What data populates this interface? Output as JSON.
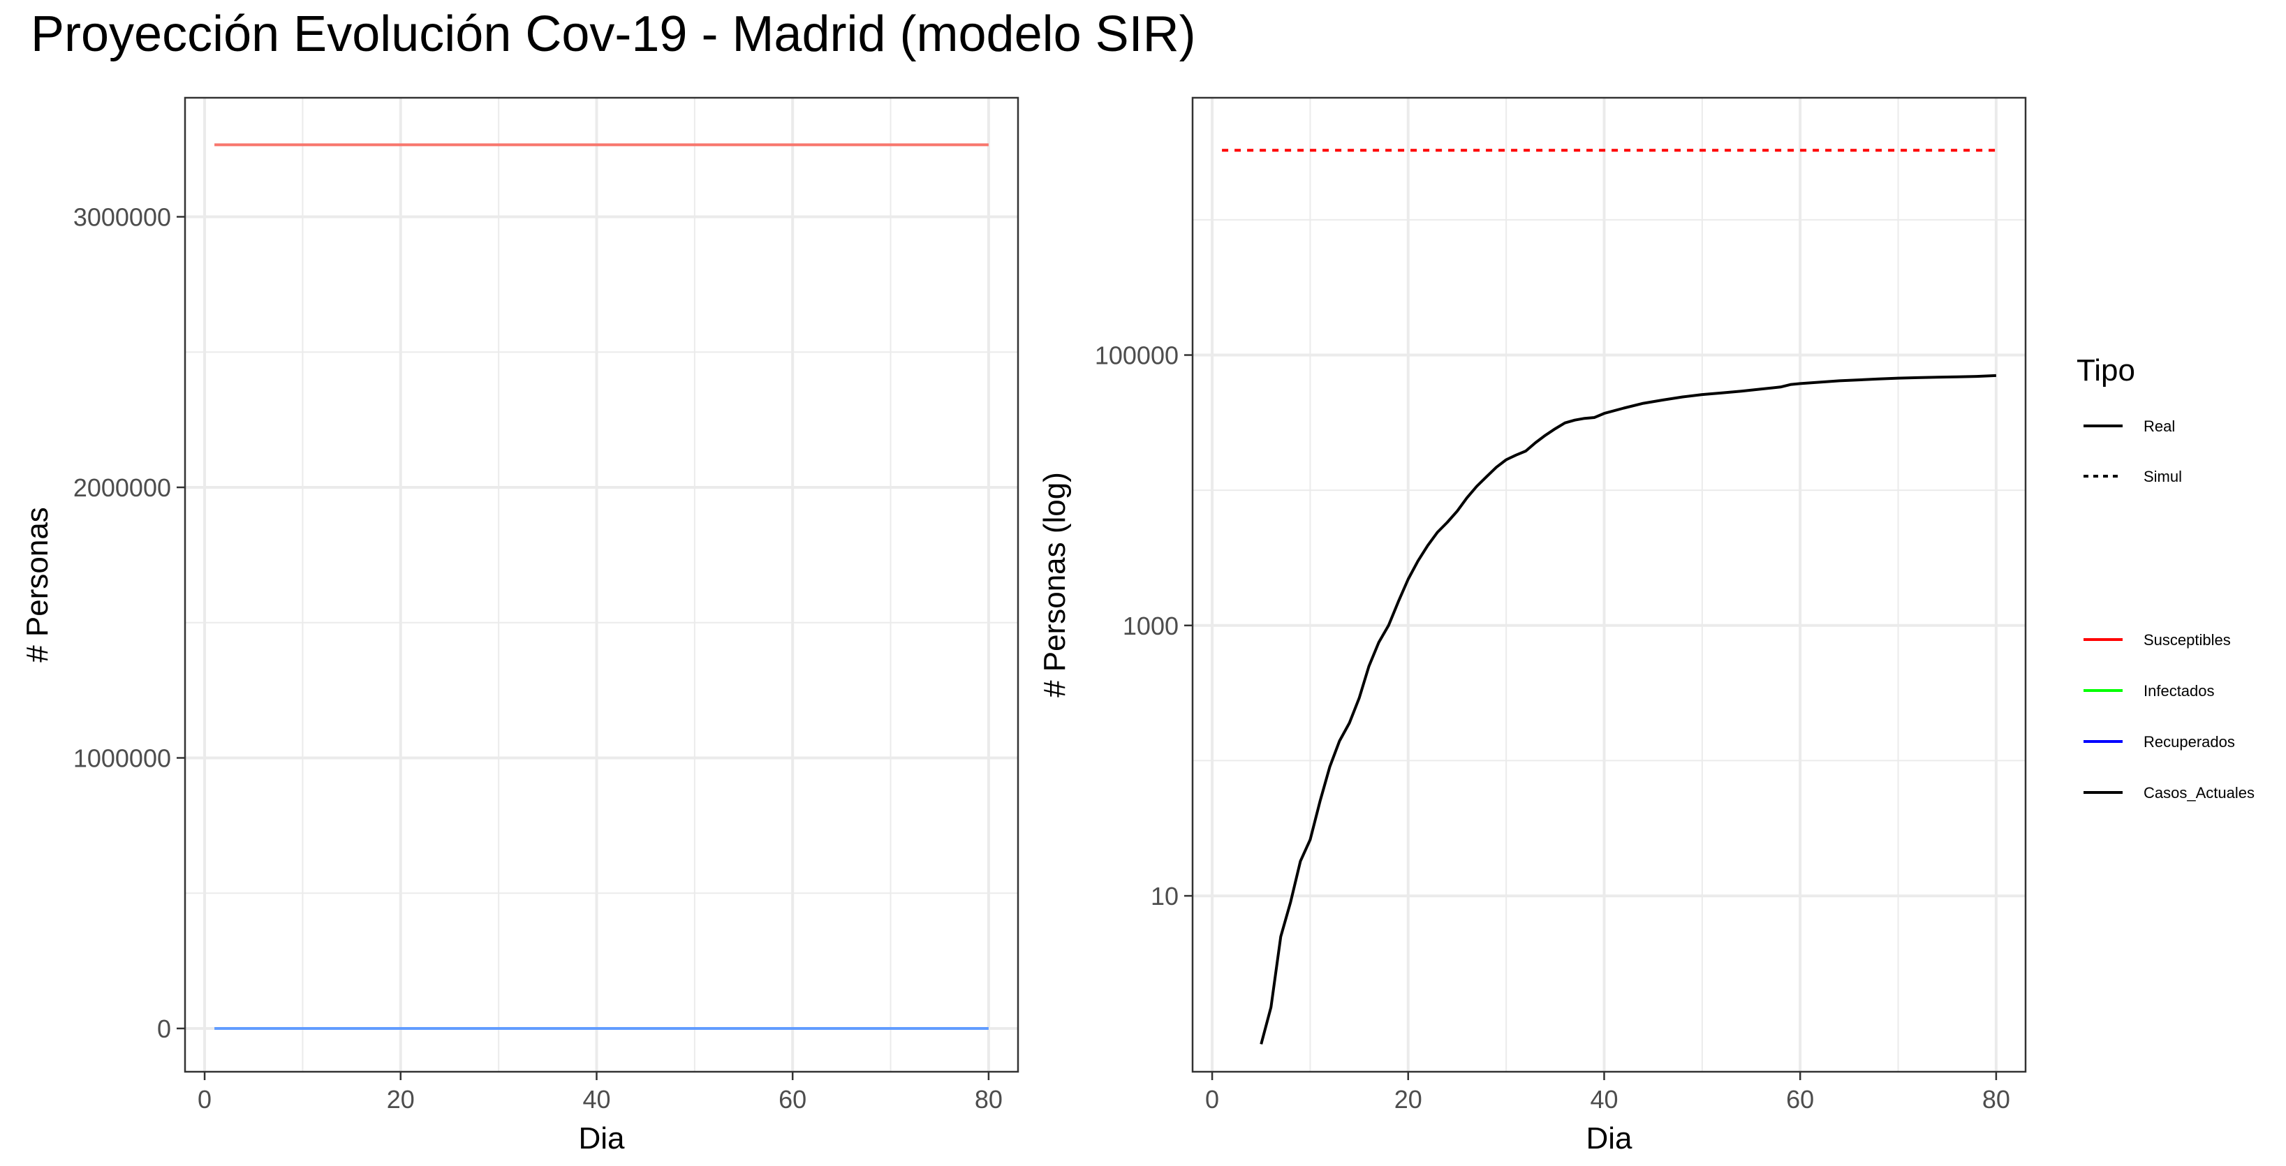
{
  "title": "Proyección Evolución Cov-19 - Madrid (modelo SIR)",
  "chart_data": [
    {
      "type": "line",
      "xlabel": "Dia",
      "ylabel": "# Personas",
      "xlim": [
        -2,
        83
      ],
      "ylim": [
        -160000,
        3440000
      ],
      "x_ticks": [
        0,
        20,
        40,
        60,
        80
      ],
      "x_tick_labels": [
        "0",
        "20",
        "40",
        "60",
        "80"
      ],
      "y_ticks": [
        0,
        1000000,
        2000000,
        3000000
      ],
      "y_tick_labels": [
        "0",
        "1000000",
        "2000000",
        "3000000"
      ],
      "grid": true,
      "series": [
        {
          "name": "Susceptibles",
          "color": "#F8766D",
          "dash": "solid",
          "x": [
            1,
            80
          ],
          "y": [
            3266000,
            3266000
          ]
        },
        {
          "name": "Recuperados",
          "color": "#619CFF",
          "dash": "solid",
          "x": [
            1,
            80
          ],
          "y": [
            0,
            0
          ]
        }
      ]
    },
    {
      "type": "line",
      "xlabel": "Dia",
      "ylabel": "# Personas (log)",
      "log_scale_y": true,
      "xlim": [
        -2,
        83
      ],
      "ylim": [
        0.5,
        8000000
      ],
      "x_ticks": [
        0,
        20,
        40,
        60,
        80
      ],
      "x_tick_labels": [
        "0",
        "20",
        "40",
        "60",
        "80"
      ],
      "y_ticks": [
        10,
        1000,
        100000
      ],
      "y_tick_labels": [
        "10",
        "1000",
        "100000"
      ],
      "grid": true,
      "series": [
        {
          "name": "Simul",
          "color": "#ff0000",
          "dash": "dotted",
          "x": [
            1,
            80
          ],
          "y": [
            3266000,
            3266000
          ]
        },
        {
          "name": "Real",
          "color": "#000000",
          "dash": "solid",
          "x": [
            5,
            6,
            7,
            8,
            9,
            10,
            11,
            12,
            13,
            14,
            15,
            16,
            17,
            18,
            19,
            20,
            21,
            22,
            23,
            24,
            25,
            26,
            27,
            28,
            29,
            30,
            31,
            32,
            33,
            34,
            35,
            36,
            37,
            38,
            39,
            40,
            42,
            44,
            46,
            48,
            50,
            52,
            54,
            56,
            58,
            59,
            60,
            62,
            64,
            66,
            68,
            70,
            72,
            74,
            76,
            78,
            80
          ],
          "y": [
            0.8,
            1.5,
            5,
            9,
            18,
            26,
            50,
            90,
            140,
            190,
            290,
            500,
            750,
            1000,
            1500,
            2200,
            3000,
            3900,
            4900,
            5800,
            7000,
            8800,
            10700,
            12600,
            14800,
            16800,
            18200,
            19500,
            22500,
            25500,
            28500,
            31500,
            33000,
            34000,
            34500,
            37000,
            40500,
            44000,
            46500,
            49000,
            51000,
            52500,
            54000,
            56000,
            58000,
            60500,
            61500,
            63000,
            64500,
            65500,
            66500,
            67500,
            68000,
            68500,
            69000,
            69500,
            70500
          ]
        }
      ]
    }
  ],
  "legend": {
    "title": "Tipo",
    "linetype_items": [
      {
        "label": "Real",
        "dash": "solid"
      },
      {
        "label": "Simul",
        "dash": "dotted"
      }
    ],
    "color_items": [
      {
        "label": "Susceptibles",
        "color": "#ff0000"
      },
      {
        "label": "Infectados",
        "color": "#00ff00"
      },
      {
        "label": "Recuperados",
        "color": "#0000ff"
      },
      {
        "label": "Casos_Actuales",
        "color": "#000000"
      }
    ]
  }
}
